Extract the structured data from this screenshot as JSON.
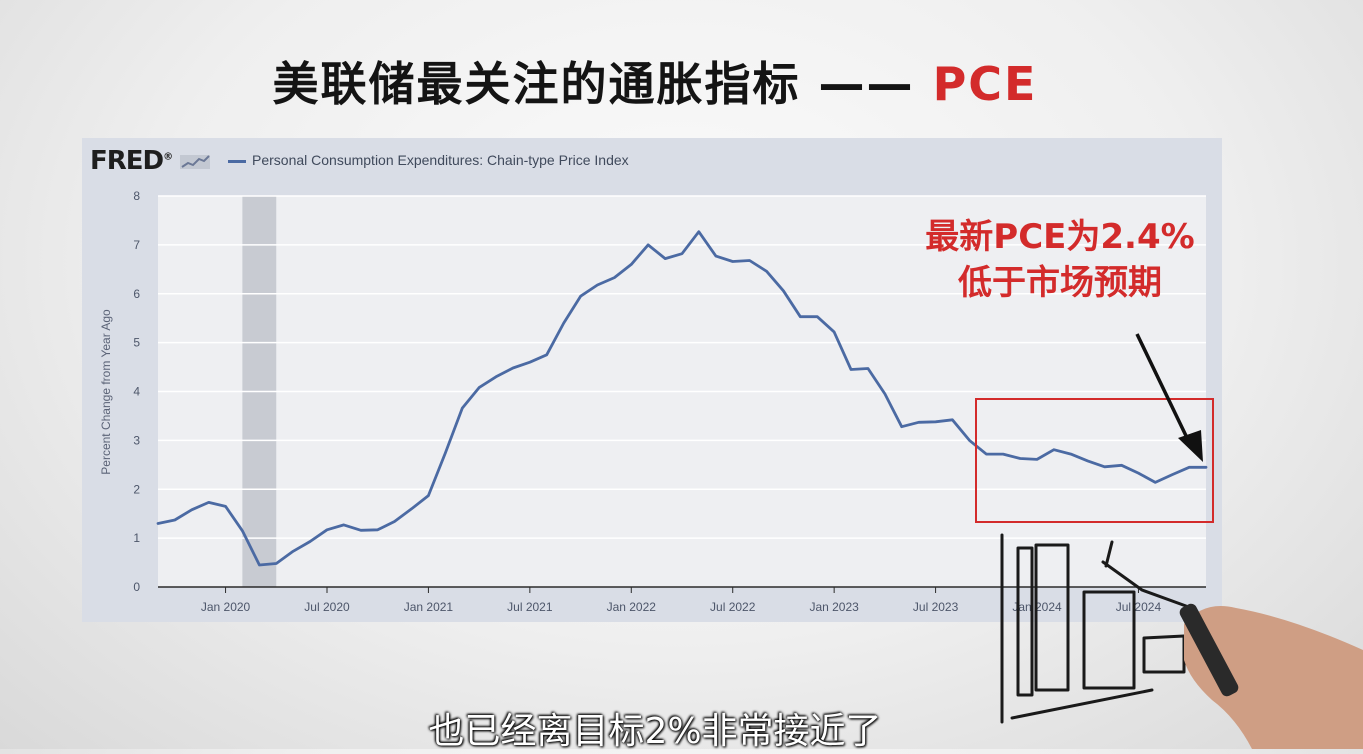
{
  "header": {
    "title_main": "美联储最关注的通胀指标 ——",
    "title_accent": "PCE"
  },
  "fred": {
    "logo": "FRED",
    "legend": "Personal Consumption Expenditures: Chain-type Price Index"
  },
  "annotation": {
    "line1": "最新PCE为2.4%",
    "line2": "低于市场预期"
  },
  "subtitle": "也已经离目标2%非常接近了",
  "colors": {
    "series": "#4b6aa3",
    "annotation": "#d32b2b",
    "recession": "#c8cbd2"
  },
  "chart_data": {
    "type": "line",
    "title": "Personal Consumption Expenditures: Chain-type Price Index",
    "ylabel": "Percent Change from Year Ago",
    "xlabel": "",
    "ylim": [
      0,
      8
    ],
    "yticks": [
      0,
      1,
      2,
      3,
      4,
      5,
      6,
      7,
      8
    ],
    "xlim": [
      2019.667,
      2024.833
    ],
    "xtick_labels": [
      "Jan 2020",
      "Jul 2020",
      "Jan 2021",
      "Jul 2021",
      "Jan 2022",
      "Jul 2022",
      "Jan 2023",
      "Jul 2023",
      "Jan 2024",
      "Jul 2024"
    ],
    "xtick_values": [
      2020.0,
      2020.5,
      2021.0,
      2021.5,
      2022.0,
      2022.5,
      2023.0,
      2023.5,
      2024.0,
      2024.5
    ],
    "recession": [
      2020.083,
      2020.25
    ],
    "grid": true,
    "legend_position": "top-left",
    "x": [
      2019.667,
      2019.75,
      2019.833,
      2019.917,
      2020.0,
      2020.083,
      2020.167,
      2020.25,
      2020.333,
      2020.417,
      2020.5,
      2020.583,
      2020.667,
      2020.75,
      2020.833,
      2020.917,
      2021.0,
      2021.083,
      2021.167,
      2021.25,
      2021.333,
      2021.417,
      2021.5,
      2021.583,
      2021.667,
      2021.75,
      2021.833,
      2021.917,
      2022.0,
      2022.083,
      2022.167,
      2022.25,
      2022.333,
      2022.417,
      2022.5,
      2022.583,
      2022.667,
      2022.75,
      2022.833,
      2022.917,
      2023.0,
      2023.083,
      2023.167,
      2023.25,
      2023.333,
      2023.417,
      2023.5,
      2023.583,
      2023.667,
      2023.75,
      2023.833,
      2023.917,
      2024.0,
      2024.083,
      2024.167,
      2024.25,
      2024.333,
      2024.417,
      2024.5,
      2024.583,
      2024.667,
      2024.75,
      2024.833
    ],
    "values": [
      1.3,
      1.37,
      1.58,
      1.73,
      1.65,
      1.15,
      0.45,
      0.48,
      0.73,
      0.93,
      1.17,
      1.27,
      1.16,
      1.17,
      1.34,
      1.6,
      1.87,
      2.74,
      3.66,
      4.08,
      4.3,
      4.48,
      4.6,
      4.75,
      5.4,
      5.95,
      6.18,
      6.33,
      6.6,
      7.0,
      6.72,
      6.82,
      7.27,
      6.77,
      6.66,
      6.68,
      6.46,
      6.06,
      5.53,
      5.53,
      5.22,
      4.45,
      4.47,
      3.95,
      3.28,
      3.37,
      3.38,
      3.42,
      3.0,
      2.72,
      2.72,
      2.63,
      2.61,
      2.81,
      2.72,
      2.58,
      2.46,
      2.49,
      2.33,
      2.14,
      2.3,
      2.45,
      2.45
    ]
  }
}
